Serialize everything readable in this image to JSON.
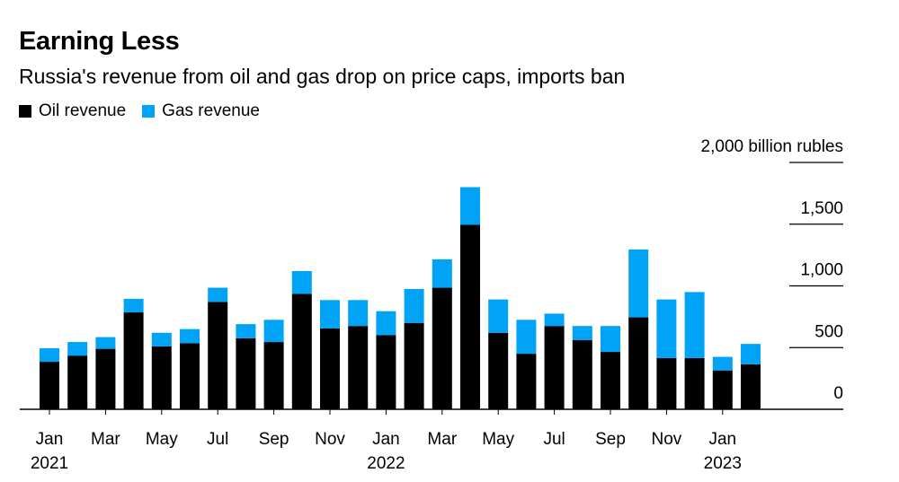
{
  "header": {
    "title": "Earning Less",
    "subtitle": "Russia's revenue from oil and gas drop on price caps, imports ban"
  },
  "chart_data": {
    "type": "bar",
    "stacked": true,
    "categories": [
      "Jan 2021",
      "Feb 2021",
      "Mar 2021",
      "Apr 2021",
      "May 2021",
      "Jun 2021",
      "Jul 2021",
      "Aug 2021",
      "Sep 2021",
      "Oct 2021",
      "Nov 2021",
      "Dec 2021",
      "Jan 2022",
      "Feb 2022",
      "Mar 2022",
      "Apr 2022",
      "May 2022",
      "Jun 2022",
      "Jul 2022",
      "Aug 2022",
      "Sep 2022",
      "Oct 2022",
      "Nov 2022",
      "Dec 2022",
      "Jan 2023",
      "Feb 2023"
    ],
    "series": [
      {
        "name": "Oil revenue",
        "color": "#000000",
        "values": [
          385,
          435,
          490,
          785,
          510,
          535,
          870,
          575,
          545,
          935,
          655,
          675,
          600,
          700,
          985,
          1495,
          620,
          450,
          675,
          560,
          465,
          745,
          415,
          415,
          315,
          365
        ]
      },
      {
        "name": "Gas revenue",
        "color": "#00a3f5",
        "values": [
          110,
          110,
          95,
          110,
          110,
          115,
          115,
          115,
          180,
          185,
          230,
          210,
          195,
          275,
          230,
          305,
          270,
          275,
          100,
          115,
          210,
          550,
          475,
          535,
          110,
          165
        ]
      }
    ],
    "tick_labels": [
      {
        "month": "Jan",
        "year": "2021"
      },
      {
        "month": "Mar",
        "year": ""
      },
      {
        "month": "May",
        "year": ""
      },
      {
        "month": "Jul",
        "year": ""
      },
      {
        "month": "Sep",
        "year": ""
      },
      {
        "month": "Nov",
        "year": ""
      },
      {
        "month": "Jan",
        "year": "2022"
      },
      {
        "month": "Mar",
        "year": ""
      },
      {
        "month": "May",
        "year": ""
      },
      {
        "month": "Jul",
        "year": ""
      },
      {
        "month": "Sep",
        "year": ""
      },
      {
        "month": "Nov",
        "year": ""
      },
      {
        "month": "Jan",
        "year": "2023"
      }
    ],
    "y_ticks": [
      {
        "value": 0,
        "label": "0"
      },
      {
        "value": 500,
        "label": "500"
      },
      {
        "value": 1000,
        "label": "1,000"
      },
      {
        "value": 1500,
        "label": "1,500"
      },
      {
        "value": 2000,
        "label": "2,000 billion rubles"
      }
    ],
    "ylim": [
      0,
      2000
    ],
    "grid": false,
    "legend_position": "top-left"
  }
}
